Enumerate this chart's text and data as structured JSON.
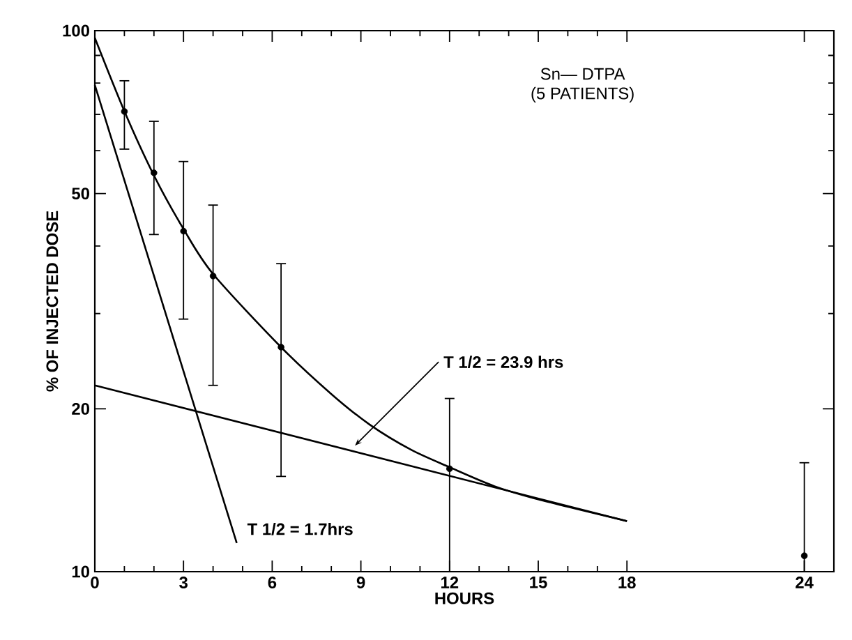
{
  "chart_data": {
    "type": "scatter",
    "xlabel": "HOURS",
    "ylabel": "% OF INJECTED DOSE",
    "log": "y",
    "grid": false,
    "xlim": [
      0,
      25
    ],
    "ylim": [
      10,
      100
    ],
    "xticks": [
      0,
      {
        "value": 1,
        "label": null
      },
      {
        "value": 2,
        "label": null
      },
      3,
      {
        "value": 4,
        "label": null
      },
      {
        "value": 5,
        "label": null
      },
      6,
      {
        "value": 7,
        "label": null
      },
      {
        "value": 8,
        "label": null
      },
      9,
      {
        "value": 10,
        "label": null
      },
      {
        "value": 11,
        "label": null
      },
      12,
      {
        "value": 13,
        "label": null
      },
      {
        "value": 14,
        "label": null
      },
      15,
      {
        "value": 16,
        "label": null
      },
      {
        "value": 17,
        "label": null
      },
      18,
      24
    ],
    "yticks": [
      10,
      20,
      {
        "value": 30,
        "label": null
      },
      {
        "value": 40,
        "label": null
      },
      50,
      {
        "value": 60,
        "label": null
      },
      {
        "value": 70,
        "label": null
      },
      {
        "value": 80,
        "label": null
      },
      {
        "value": 90,
        "label": null
      },
      100
    ],
    "series": [
      {
        "marker": "circle",
        "color": "#000000",
        "x": [
          1,
          2,
          3,
          4,
          6.3,
          12,
          24
        ],
        "values": [
          70.9,
          54.6,
          42.6,
          35.2,
          26.0,
          15.5,
          10.7
        ],
        "errors": [
          [
            60.4,
            80.8
          ],
          [
            42,
            68
          ],
          [
            29.3,
            57.3
          ],
          [
            22.1,
            47.6
          ],
          [
            15,
            37.1
          ],
          [
            10,
            20.9
          ],
          [
            10,
            15.9
          ]
        ]
      },
      {
        "type": "line",
        "marker": "none",
        "color": "#000000",
        "x": [
          0,
          1,
          2,
          3,
          4,
          6.3,
          8,
          9.3,
          10.7,
          12,
          13.5,
          15,
          18
        ],
        "values": [
          97,
          71,
          54,
          43,
          35.5,
          26,
          21.3,
          18.7,
          16.8,
          15.6,
          14.4,
          13.6,
          12.4
        ]
      },
      {
        "type": "line",
        "marker": "none",
        "color": "#000000",
        "x": [
          0,
          18
        ],
        "values": [
          22.1,
          12.4
        ]
      },
      {
        "type": "line",
        "marker": "none",
        "color": "#000000",
        "x": [
          0,
          4.8
        ],
        "values": [
          79.4,
          11.3
        ]
      }
    ],
    "annotations": [
      "Sn— DTPA",
      "(5 PATIENTS)",
      {
        "text": "T 1/2 = 23.9 hrs",
        "x": 8.8,
        "y": 17.1
      },
      {
        "text": "T 1/2 = 1.7hrs",
        "x": 4.8,
        "y": 11.3
      }
    ]
  }
}
